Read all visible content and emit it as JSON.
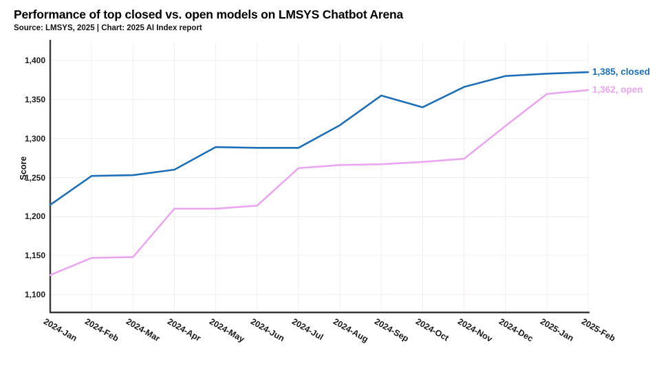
{
  "chart": {
    "title": "Performance of top closed vs. open models on LMSYS Chatbot Arena",
    "subtitle": "Source: LMSYS, 2025 | Chart: 2025 AI Index report"
  },
  "chart_data": {
    "type": "line",
    "title": "Performance of top closed vs. open models on LMSYS Chatbot Arena",
    "subtitle": "Source: LMSYS, 2025 | Chart: 2025 AI Index report",
    "xlabel": "",
    "ylabel": "Score",
    "ylim": [
      1100,
      1400
    ],
    "yticks": [
      1100,
      1150,
      1200,
      1250,
      1300,
      1350,
      1400
    ],
    "grid": true,
    "legend_position": "right-end-labels",
    "categories": [
      "2024-Jan",
      "2024-Feb",
      "2024-Mar",
      "2024-Apr",
      "2024-May",
      "2024-Jun",
      "2024-Jul",
      "2024-Aug",
      "2024-Sep",
      "2024-Oct",
      "2024-Nov",
      "2024-Dec",
      "2025-Jan",
      "2025-Feb"
    ],
    "series": [
      {
        "name": "closed",
        "color": "#1c6fb6",
        "end_label": "1,385, closed",
        "end_value": 1385,
        "values": [
          1215,
          1252,
          1253,
          1260,
          1289,
          1288,
          1288,
          1317,
          1355,
          1340,
          1366,
          1380,
          1383,
          1385
        ]
      },
      {
        "name": "open",
        "color": "#e9a6ef",
        "end_label": "1,362, open",
        "end_value": 1362,
        "values": [
          1125,
          1147,
          1148,
          1210,
          1210,
          1214,
          1262,
          1266,
          1267,
          1270,
          1274,
          1316,
          1357,
          1362
        ]
      }
    ],
    "colors": {
      "axis": "#383838",
      "grid": "#f1eef1",
      "text": "#1a1a1a"
    }
  }
}
